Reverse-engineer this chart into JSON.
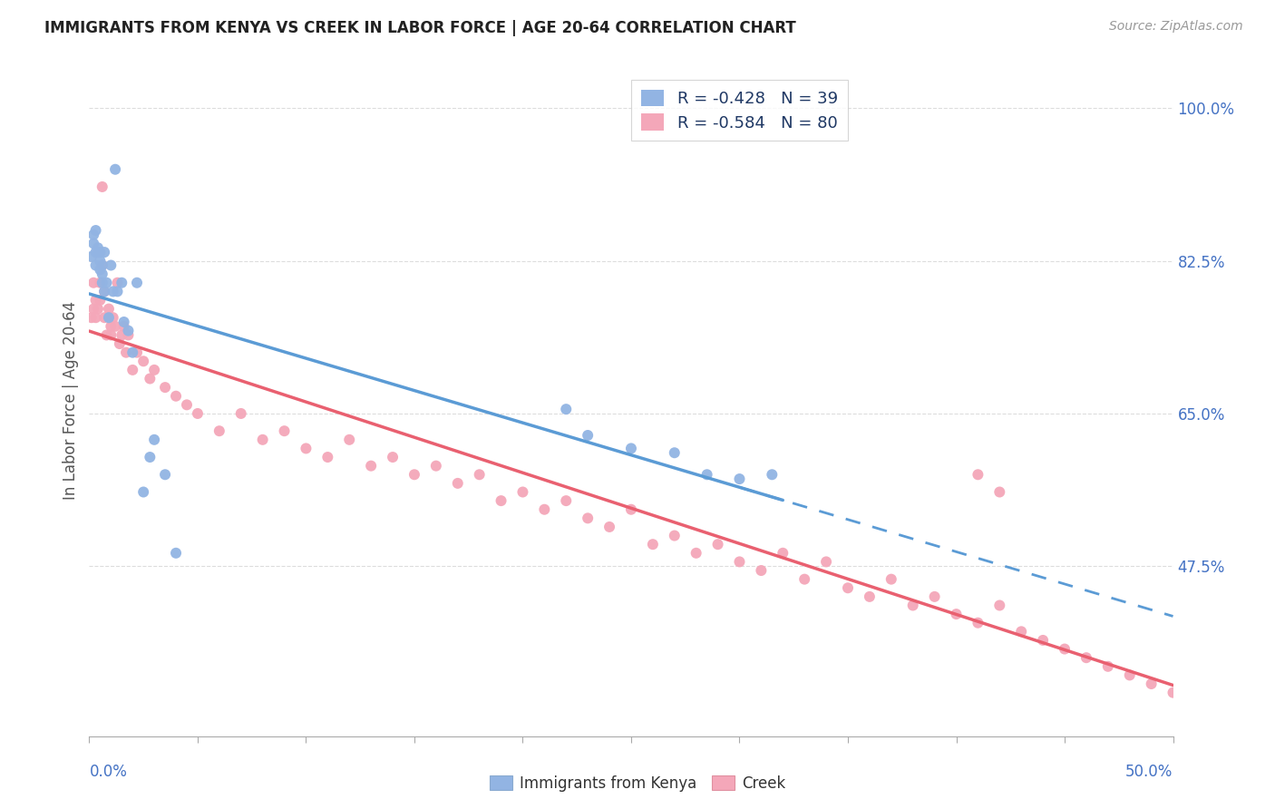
{
  "title": "IMMIGRANTS FROM KENYA VS CREEK IN LABOR FORCE | AGE 20-64 CORRELATION CHART",
  "source": "Source: ZipAtlas.com",
  "ylabel": "In Labor Force | Age 20-64",
  "right_ytick_vals": [
    1.0,
    0.825,
    0.65,
    0.475
  ],
  "right_ytick_labels": [
    "100.0%",
    "82.5%",
    "65.0%",
    "47.5%"
  ],
  "xmin": 0.0,
  "xmax": 0.5,
  "ymin": 0.28,
  "ymax": 1.05,
  "legend_kenya": "R = -0.428   N = 39",
  "legend_creek": "R = -0.584   N = 80",
  "color_kenya": "#92B4E3",
  "color_creek": "#F4A7B9",
  "color_kenya_line": "#5B9BD5",
  "color_creek_line": "#E96070",
  "color_right_axis": "#4472C4",
  "kenya_x": [
    0.001,
    0.002,
    0.002,
    0.003,
    0.003,
    0.003,
    0.004,
    0.004,
    0.005,
    0.005,
    0.005,
    0.006,
    0.006,
    0.006,
    0.007,
    0.007,
    0.008,
    0.009,
    0.01,
    0.011,
    0.012,
    0.013,
    0.015,
    0.016,
    0.018,
    0.02,
    0.022,
    0.025,
    0.028,
    0.03,
    0.035,
    0.04,
    0.22,
    0.23,
    0.25,
    0.27,
    0.285,
    0.3,
    0.315
  ],
  "kenya_y": [
    0.83,
    0.845,
    0.855,
    0.86,
    0.835,
    0.82,
    0.84,
    0.835,
    0.835,
    0.825,
    0.815,
    0.82,
    0.81,
    0.8,
    0.835,
    0.79,
    0.8,
    0.76,
    0.82,
    0.79,
    0.93,
    0.79,
    0.8,
    0.755,
    0.745,
    0.72,
    0.8,
    0.56,
    0.6,
    0.62,
    0.58,
    0.49,
    0.655,
    0.625,
    0.61,
    0.605,
    0.58,
    0.575,
    0.58
  ],
  "creek_x": [
    0.001,
    0.002,
    0.002,
    0.003,
    0.003,
    0.004,
    0.005,
    0.005,
    0.006,
    0.006,
    0.007,
    0.007,
    0.008,
    0.009,
    0.01,
    0.01,
    0.011,
    0.012,
    0.013,
    0.014,
    0.015,
    0.016,
    0.017,
    0.018,
    0.02,
    0.022,
    0.025,
    0.028,
    0.03,
    0.035,
    0.04,
    0.045,
    0.05,
    0.06,
    0.07,
    0.08,
    0.09,
    0.1,
    0.11,
    0.12,
    0.13,
    0.14,
    0.15,
    0.16,
    0.17,
    0.18,
    0.19,
    0.2,
    0.21,
    0.22,
    0.23,
    0.24,
    0.25,
    0.26,
    0.27,
    0.28,
    0.29,
    0.3,
    0.31,
    0.32,
    0.33,
    0.34,
    0.35,
    0.36,
    0.37,
    0.38,
    0.39,
    0.4,
    0.41,
    0.42,
    0.43,
    0.44,
    0.45,
    0.46,
    0.47,
    0.48,
    0.49,
    0.5,
    0.41,
    0.42
  ],
  "creek_y": [
    0.76,
    0.77,
    0.8,
    0.78,
    0.76,
    0.77,
    0.8,
    0.78,
    0.82,
    0.91,
    0.76,
    0.79,
    0.74,
    0.77,
    0.75,
    0.74,
    0.76,
    0.75,
    0.8,
    0.73,
    0.74,
    0.75,
    0.72,
    0.74,
    0.7,
    0.72,
    0.71,
    0.69,
    0.7,
    0.68,
    0.67,
    0.66,
    0.65,
    0.63,
    0.65,
    0.62,
    0.63,
    0.61,
    0.6,
    0.62,
    0.59,
    0.6,
    0.58,
    0.59,
    0.57,
    0.58,
    0.55,
    0.56,
    0.54,
    0.55,
    0.53,
    0.52,
    0.54,
    0.5,
    0.51,
    0.49,
    0.5,
    0.48,
    0.47,
    0.49,
    0.46,
    0.48,
    0.45,
    0.44,
    0.46,
    0.43,
    0.44,
    0.42,
    0.41,
    0.43,
    0.4,
    0.39,
    0.38,
    0.37,
    0.36,
    0.35,
    0.34,
    0.33,
    0.58,
    0.56
  ]
}
